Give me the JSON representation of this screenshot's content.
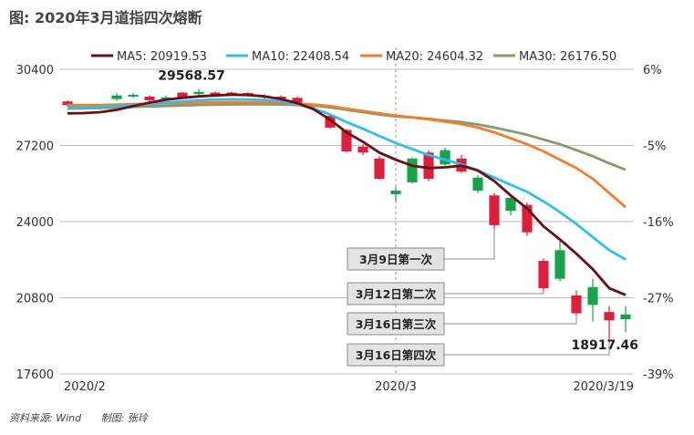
{
  "title": "图: 2020年3月道指四次熔断",
  "source": "资料来源: Wind",
  "credit": "制图: 张玲",
  "chart_data": {
    "type": "candlestick_with_moving_averages",
    "title": "2020年3月道指四次熔断",
    "y_left": {
      "min": 17600,
      "max": 30400,
      "ticks": [
        30400,
        27200,
        24000,
        20800,
        17600
      ]
    },
    "y_right": {
      "ticks": [
        "6%",
        "-5%",
        "-16%",
        "-27%",
        "-39%"
      ]
    },
    "x_ticks": [
      "2020/2",
      "2020/3",
      "2020/3/19"
    ],
    "legend": [
      {
        "name": "MA5",
        "label": "MA5: 20919.53",
        "color": "#6b0f14"
      },
      {
        "name": "MA10",
        "label": "MA10: 22408.54",
        "color": "#33bdea"
      },
      {
        "name": "MA20",
        "label": "MA20: 24604.32",
        "color": "#f07e2c"
      },
      {
        "name": "MA30",
        "label": "MA30: 26176.50",
        "color": "#8a9a6e"
      }
    ],
    "candles": [
      {
        "o": 29050,
        "c": 28900,
        "h": 29100,
        "l": 28850
      },
      {
        "o": 28880,
        "c": 28880,
        "h": 28950,
        "l": 28800
      },
      {
        "o": 28750,
        "c": 28860,
        "h": 28900,
        "l": 28700
      },
      {
        "o": 29150,
        "c": 29300,
        "h": 29400,
        "l": 29080
      },
      {
        "o": 29280,
        "c": 29330,
        "h": 29400,
        "l": 29200
      },
      {
        "o": 29250,
        "c": 29100,
        "h": 29300,
        "l": 28800
      },
      {
        "o": 29200,
        "c": 29220,
        "h": 29300,
        "l": 29050
      },
      {
        "o": 29420,
        "c": 29220,
        "h": 29450,
        "l": 29150
      },
      {
        "o": 29360,
        "c": 29450,
        "h": 29568.57,
        "l": 29300
      },
      {
        "o": 29420,
        "c": 29360,
        "h": 29470,
        "l": 29300
      },
      {
        "o": 29420,
        "c": 29350,
        "h": 29460,
        "l": 29300
      },
      {
        "o": 29400,
        "c": 29300,
        "h": 29450,
        "l": 29250
      },
      {
        "o": 29300,
        "c": 29250,
        "h": 29350,
        "l": 29150
      },
      {
        "o": 29250,
        "c": 29150,
        "h": 29300,
        "l": 29050
      },
      {
        "o": 29200,
        "c": 28950,
        "h": 29250,
        "l": 28900
      },
      {
        "o": 28900,
        "c": 28850,
        "h": 28950,
        "l": 28750
      },
      {
        "o": 28450,
        "c": 27950,
        "h": 28500,
        "l": 27900
      },
      {
        "o": 27850,
        "c": 26950,
        "h": 27900,
        "l": 26900
      },
      {
        "o": 27150,
        "c": 26900,
        "h": 27250,
        "l": 26800
      },
      {
        "o": 26650,
        "c": 25800,
        "h": 26750,
        "l": 25750
      },
      {
        "o": 25150,
        "c": 25300,
        "h": 25450,
        "l": 24850
      },
      {
        "o": 25650,
        "c": 26650,
        "h": 26700,
        "l": 25600
      },
      {
        "o": 26900,
        "c": 25800,
        "h": 27000,
        "l": 25700
      },
      {
        "o": 26400,
        "c": 27000,
        "h": 27100,
        "l": 26350
      },
      {
        "o": 26650,
        "c": 26100,
        "h": 26800,
        "l": 26050
      },
      {
        "o": 25300,
        "c": 25850,
        "h": 25950,
        "l": 25200
      },
      {
        "o": 25100,
        "c": 23850,
        "h": 25200,
        "l": 23700
      },
      {
        "o": 24450,
        "c": 25000,
        "h": 25100,
        "l": 24250
      },
      {
        "o": 24700,
        "c": 23550,
        "h": 24800,
        "l": 23400
      },
      {
        "o": 22350,
        "c": 21200,
        "h": 22450,
        "l": 21100
      },
      {
        "o": 21600,
        "c": 22800,
        "h": 23200,
        "l": 21500
      },
      {
        "o": 20900,
        "c": 20150,
        "h": 21100,
        "l": 20050
      },
      {
        "o": 20500,
        "c": 21250,
        "h": 21600,
        "l": 19800
      },
      {
        "o": 20200,
        "c": 19850,
        "h": 20450,
        "l": 18917.46
      },
      {
        "o": 19900,
        "c": 20100,
        "h": 20450,
        "l": 19350
      }
    ],
    "ma": {
      "MA5": [
        28550,
        28560,
        28600,
        28700,
        28850,
        29000,
        29120,
        29200,
        29260,
        29300,
        29330,
        29320,
        29260,
        29150,
        28980,
        28720,
        28280,
        27750,
        27350,
        26900,
        26600,
        26350,
        26250,
        26280,
        26350,
        26150,
        25700,
        25100,
        24550,
        23800,
        23250,
        22650,
        22000,
        21200,
        20919.53
      ],
      "MA10": [
        28800,
        28800,
        28820,
        28850,
        28900,
        28950,
        29000,
        29050,
        29100,
        29130,
        29140,
        29130,
        29110,
        29050,
        28930,
        28750,
        28500,
        28180,
        27900,
        27600,
        27300,
        27050,
        26800,
        26600,
        26400,
        26150,
        25850,
        25550,
        25250,
        24850,
        24400,
        23900,
        23350,
        22800,
        22408.54
      ],
      "MA20": [
        28900,
        28900,
        28900,
        28920,
        28940,
        28950,
        28970,
        28980,
        29000,
        29010,
        29020,
        29010,
        29000,
        28980,
        28960,
        28920,
        28850,
        28750,
        28650,
        28550,
        28450,
        28380,
        28300,
        28200,
        28100,
        27950,
        27750,
        27500,
        27250,
        26950,
        26600,
        26250,
        25800,
        25200,
        24604.32
      ],
      "MA30": [
        28750,
        28760,
        28780,
        28800,
        28820,
        28840,
        28860,
        28880,
        28900,
        28910,
        28920,
        28930,
        28930,
        28920,
        28900,
        28870,
        28800,
        28700,
        28600,
        28500,
        28420,
        28380,
        28320,
        28250,
        28180,
        28080,
        27950,
        27800,
        27650,
        27450,
        27250,
        27000,
        26750,
        26450,
        26176.5
      ]
    },
    "annotations": {
      "high": {
        "value": 29568.57,
        "label": "29568.57",
        "index": 8
      },
      "low": {
        "value": 18917.46,
        "label": "18917.46",
        "index": 33
      },
      "vline_index": 20,
      "circuit_breakers": [
        {
          "label": "3月9日第一次",
          "index": 26
        },
        {
          "label": "3月12日第二次",
          "index": 29
        },
        {
          "label": "3月16日第三次",
          "index": 31
        },
        {
          "label": "3月16日第四次",
          "index": 33
        }
      ]
    },
    "up_color": "#16a34a",
    "down_color": "#dc1f3c"
  }
}
